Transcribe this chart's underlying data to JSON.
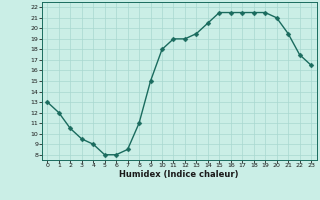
{
  "x": [
    0,
    1,
    2,
    3,
    4,
    5,
    6,
    7,
    8,
    9,
    10,
    11,
    12,
    13,
    14,
    15,
    16,
    17,
    18,
    19,
    20,
    21,
    22,
    23
  ],
  "y": [
    13,
    12,
    10.5,
    9.5,
    9,
    8,
    8,
    8.5,
    11,
    15,
    18,
    19,
    19,
    19.5,
    20.5,
    21.5,
    21.5,
    21.5,
    21.5,
    21.5,
    21,
    19.5,
    17.5,
    16.5
  ],
  "line_color": "#1a6b5e",
  "marker_color": "#1a6b5e",
  "bg_color": "#caeee6",
  "grid_color": "#a8d8d0",
  "xlabel": "Humidex (Indice chaleur)",
  "xlim": [
    -0.5,
    23.5
  ],
  "ylim": [
    7.5,
    22.5
  ],
  "yticks": [
    8,
    9,
    10,
    11,
    12,
    13,
    14,
    15,
    16,
    17,
    18,
    19,
    20,
    21,
    22
  ],
  "xticks": [
    0,
    1,
    2,
    3,
    4,
    5,
    6,
    7,
    8,
    9,
    10,
    11,
    12,
    13,
    14,
    15,
    16,
    17,
    18,
    19,
    20,
    21,
    22,
    23
  ],
  "line_width": 1.0,
  "marker_size": 2.5
}
